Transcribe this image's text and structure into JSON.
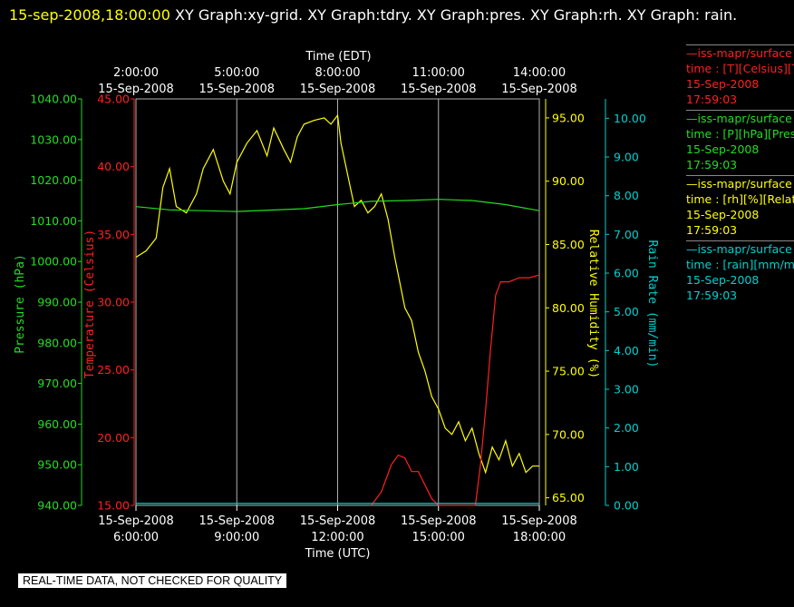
{
  "header": {
    "timestamp": "15-sep-2008,18:00:00",
    "title_rest": " XY Graph:xy-grid.  XY Graph:tdry.  XY Graph:pres.  XY Graph:rh.  XY Graph: rain."
  },
  "banner": "REAL-TIME DATA, NOT CHECKED FOR QUALITY",
  "colors": {
    "pressure": "#22dd22",
    "temperature": "#ff2020",
    "humidity": "#ffff00",
    "rain": "#00d0d0",
    "grid": "#b0b0b0"
  },
  "legend": [
    {
      "line": "—iss-mapr/surface",
      "units": "time : [T][Celsius][T",
      "date": "15-Sep-2008",
      "time": "17:59:03",
      "color": "#ff2020"
    },
    {
      "line": "—iss-mapr/surface",
      "units": "time : [P][hPa][Pres",
      "date": "15-Sep-2008",
      "time": "17:59:03",
      "color": "#22dd22"
    },
    {
      "line": "—iss-mapr/surface",
      "units": "time : [rh][%][Relati",
      "date": "15-Sep-2008",
      "time": "17:59:03",
      "color": "#ffff00"
    },
    {
      "line": "—iss-mapr/surface",
      "units": "time : [rain][mm/min",
      "date": "15-Sep-2008",
      "time": "17:59:03",
      "color": "#00d0d0"
    }
  ],
  "chart_data": {
    "type": "line",
    "x_range_utc_hours": [
      6,
      18
    ],
    "top_axis": {
      "title": "Time (EDT)",
      "ticks": [
        {
          "time": "2:00:00",
          "date": "15-Sep-2008",
          "utc_hour": 6
        },
        {
          "time": "5:00:00",
          "date": "15-Sep-2008",
          "utc_hour": 9
        },
        {
          "time": "8:00:00",
          "date": "15-Sep-2008",
          "utc_hour": 12
        },
        {
          "time": "11:00:00",
          "date": "15-Sep-2008",
          "utc_hour": 15
        },
        {
          "time": "14:00:00",
          "date": "15-Sep-2008",
          "utc_hour": 18
        }
      ]
    },
    "bottom_axis": {
      "title": "Time (UTC)",
      "ticks": [
        {
          "date": "15-Sep-2008",
          "time": "6:00:00",
          "utc_hour": 6
        },
        {
          "date": "15-Sep-2008",
          "time": "9:00:00",
          "utc_hour": 9
        },
        {
          "date": "15-Sep-2008",
          "time": "12:00:00",
          "utc_hour": 12
        },
        {
          "date": "15-Sep-2008",
          "time": "15:00:00",
          "utc_hour": 15
        },
        {
          "date": "15-Sep-2008",
          "time": "18:00:00",
          "utc_hour": 18
        }
      ]
    },
    "y_axes": [
      {
        "key": "pressure",
        "label": "Pressure (hPa)",
        "range": [
          940,
          1040
        ],
        "ticks": [
          "1040.00",
          "1030.00",
          "1020.00",
          "1010.00",
          "1000.00",
          "990.00",
          "980.00",
          "970.00",
          "960.00",
          "950.00",
          "940.00"
        ]
      },
      {
        "key": "temperature",
        "label": "Temperature (Celsius)",
        "range": [
          15,
          45
        ],
        "ticks": [
          "45.00",
          "40.00",
          "35.00",
          "30.00",
          "25.00",
          "20.00",
          "15.00"
        ]
      },
      {
        "key": "humidity",
        "label": "Relative Humidity (%)",
        "range": [
          64.4,
          96.5
        ],
        "ticks": [
          "95.00",
          "90.00",
          "85.00",
          "80.00",
          "75.00",
          "70.00",
          "65.00"
        ]
      },
      {
        "key": "rain",
        "label": "Rain Rate (mm/min)",
        "range": [
          0,
          10.5
        ],
        "ticks": [
          "10.00",
          "9.00",
          "8.00",
          "7.00",
          "6.00",
          "5.00",
          "4.00",
          "3.00",
          "2.00",
          "1.00",
          "0.00"
        ]
      }
    ],
    "series": [
      {
        "key": "humidity",
        "points": [
          [
            6.0,
            84.0
          ],
          [
            6.3,
            84.5
          ],
          [
            6.6,
            85.5
          ],
          [
            6.8,
            89.5
          ],
          [
            7.0,
            91.0
          ],
          [
            7.2,
            88.0
          ],
          [
            7.5,
            87.5
          ],
          [
            7.8,
            89.0
          ],
          [
            8.0,
            91.0
          ],
          [
            8.3,
            92.5
          ],
          [
            8.6,
            90.0
          ],
          [
            8.8,
            89.0
          ],
          [
            9.0,
            91.5
          ],
          [
            9.3,
            93.0
          ],
          [
            9.6,
            94.0
          ],
          [
            9.9,
            92.0
          ],
          [
            10.1,
            94.2
          ],
          [
            10.4,
            92.5
          ],
          [
            10.6,
            91.5
          ],
          [
            10.8,
            93.5
          ],
          [
            11.0,
            94.5
          ],
          [
            11.3,
            94.8
          ],
          [
            11.6,
            95.0
          ],
          [
            11.8,
            94.5
          ],
          [
            12.0,
            95.2
          ],
          [
            12.1,
            93.0
          ],
          [
            12.3,
            90.5
          ],
          [
            12.5,
            88.0
          ],
          [
            12.7,
            88.5
          ],
          [
            12.9,
            87.5
          ],
          [
            13.1,
            88.0
          ],
          [
            13.3,
            89.0
          ],
          [
            13.5,
            87.0
          ],
          [
            13.7,
            84.0
          ],
          [
            14.0,
            80.0
          ],
          [
            14.2,
            79.0
          ],
          [
            14.4,
            76.5
          ],
          [
            14.6,
            75.0
          ],
          [
            14.8,
            73.0
          ],
          [
            15.0,
            72.0
          ],
          [
            15.2,
            70.5
          ],
          [
            15.4,
            70.0
          ],
          [
            15.6,
            71.0
          ],
          [
            15.8,
            69.5
          ],
          [
            16.0,
            70.5
          ],
          [
            16.2,
            68.5
          ],
          [
            16.4,
            67.0
          ],
          [
            16.6,
            69.0
          ],
          [
            16.8,
            68.0
          ],
          [
            17.0,
            69.5
          ],
          [
            17.2,
            67.5
          ],
          [
            17.4,
            68.5
          ],
          [
            17.6,
            67.0
          ],
          [
            17.8,
            67.5
          ],
          [
            18.0,
            67.5
          ]
        ]
      },
      {
        "key": "pressure",
        "points": [
          [
            6.0,
            1013.5
          ],
          [
            7.0,
            1012.7
          ],
          [
            9.0,
            1012.3
          ],
          [
            11.0,
            1013.0
          ],
          [
            12.0,
            1014.0
          ],
          [
            13.0,
            1014.8
          ],
          [
            14.0,
            1015.0
          ],
          [
            15.0,
            1015.3
          ],
          [
            16.0,
            1015.0
          ],
          [
            17.0,
            1014.0
          ],
          [
            18.0,
            1012.5
          ]
        ]
      },
      {
        "key": "temperature",
        "points": [
          [
            13.0,
            15.0
          ],
          [
            13.3,
            16.0
          ],
          [
            13.6,
            18.0
          ],
          [
            13.8,
            18.7
          ],
          [
            14.0,
            18.5
          ],
          [
            14.2,
            17.5
          ],
          [
            14.4,
            17.5
          ],
          [
            14.6,
            16.5
          ],
          [
            14.8,
            15.5
          ],
          [
            15.0,
            15.0
          ],
          [
            16.1,
            15.0
          ],
          [
            16.25,
            18.0
          ],
          [
            16.4,
            22.0
          ],
          [
            16.55,
            26.5
          ],
          [
            16.7,
            30.5
          ],
          [
            16.85,
            31.5
          ],
          [
            17.1,
            31.5
          ],
          [
            17.4,
            31.8
          ],
          [
            17.7,
            31.8
          ],
          [
            18.0,
            32.0
          ]
        ]
      },
      {
        "key": "rain",
        "points": [
          [
            6.0,
            0.05
          ],
          [
            18.0,
            0.05
          ]
        ]
      }
    ]
  }
}
